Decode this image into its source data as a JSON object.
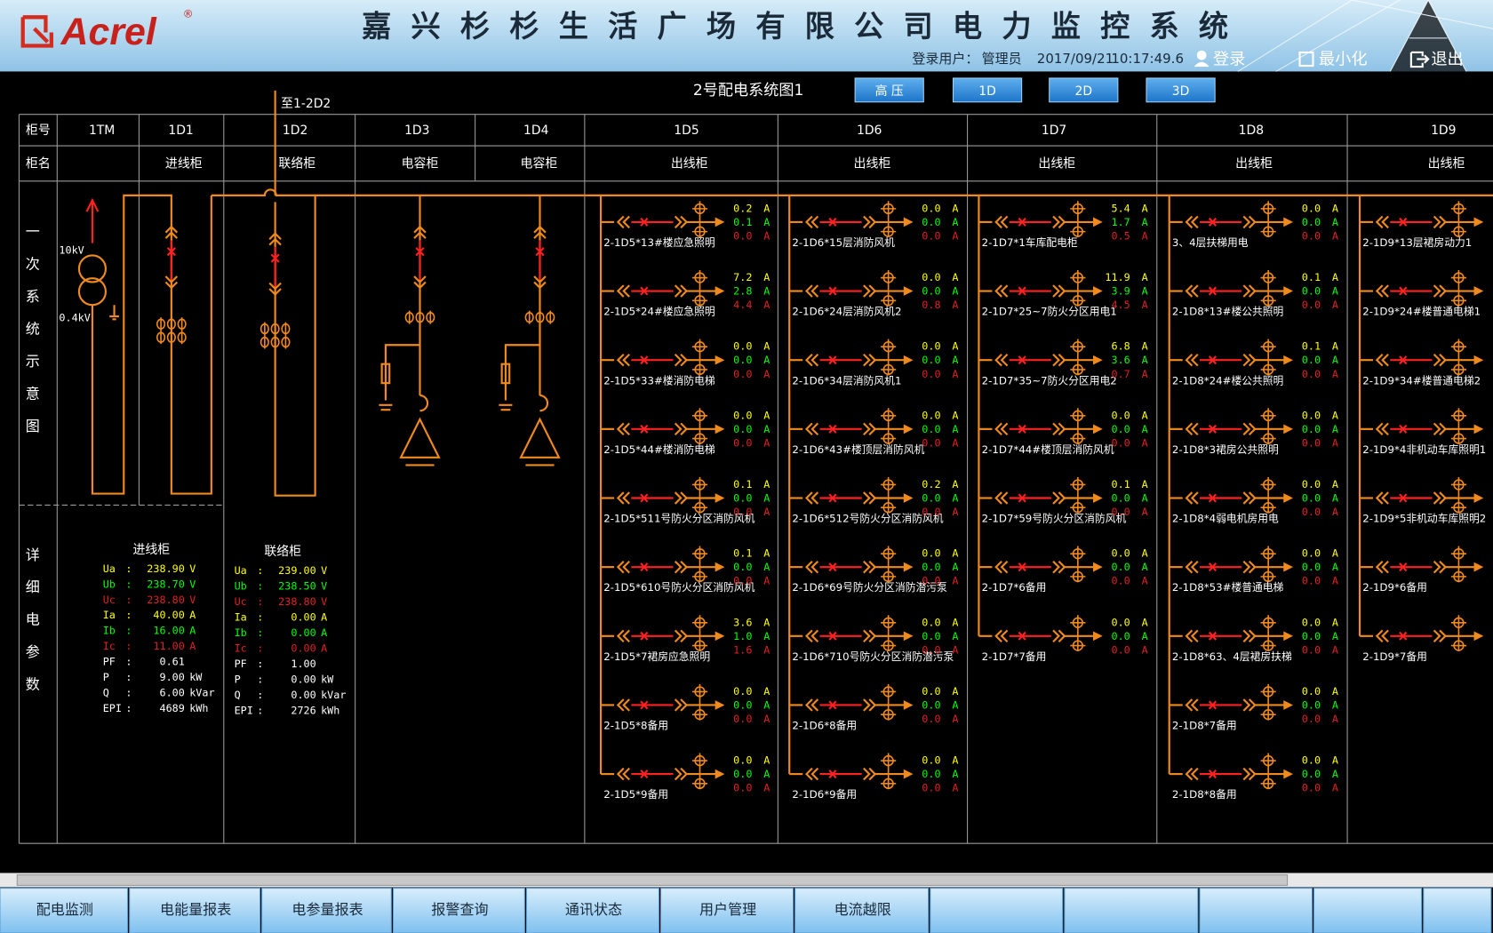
{
  "header": {
    "logo": "Acrel",
    "registered": "®",
    "title": "嘉兴杉杉生活广场有限公司电力监控系统",
    "user_label": "登录用户：",
    "user": "管理员",
    "date": "2017/09/21",
    "time": "10:17:49.6",
    "login": "登录",
    "minimize": "最小化",
    "exit": "退出"
  },
  "diagram": {
    "title": "2号配电系统图1",
    "buttons": [
      "高 压",
      "1D",
      "2D",
      "3D"
    ],
    "tie_note": "至1-2D2",
    "row_labels": [
      "柜号",
      "柜名"
    ],
    "side_labels": [
      "一次系统示意图",
      "详细电参数"
    ],
    "voltages": [
      "10kV",
      "0.4kV"
    ]
  },
  "cabinets": [
    {
      "id": "1TM"
    },
    {
      "id": "1D1",
      "name": "进线柜"
    },
    {
      "id": "1D2",
      "name": "联络柜"
    },
    {
      "id": "1D3",
      "name": "电容柜"
    },
    {
      "id": "1D4",
      "name": "电容柜"
    },
    {
      "id": "1D5",
      "name": "出线柜"
    },
    {
      "id": "1D6",
      "name": "出线柜"
    },
    {
      "id": "1D7",
      "name": "出线柜"
    },
    {
      "id": "1D8",
      "name": "出线柜"
    },
    {
      "id": "1D9",
      "name": "出线柜"
    }
  ],
  "unit": "A",
  "feeders": [
    {
      "cabinet": "1D5",
      "circuits": [
        {
          "label": "2-1D5*13#楼应急照明",
          "values": [
            "0.2",
            "0.1",
            "0.0"
          ]
        },
        {
          "label": "2-1D5*24#楼应急照明",
          "values": [
            "7.2",
            "2.8",
            "4.4"
          ]
        },
        {
          "label": "2-1D5*33#楼消防电梯",
          "values": [
            "0.0",
            "0.0",
            "0.0"
          ]
        },
        {
          "label": "2-1D5*44#楼消防电梯",
          "values": [
            "0.0",
            "0.0",
            "0.0"
          ]
        },
        {
          "label": "2-1D5*511号防火分区消防风机",
          "values": [
            "0.1",
            "0.0",
            "0.0"
          ]
        },
        {
          "label": "2-1D5*610号防火分区消防风机",
          "values": [
            "0.1",
            "0.0",
            "0.0"
          ]
        },
        {
          "label": "2-1D5*7裙房应急照明",
          "values": [
            "3.6",
            "1.0",
            "1.6"
          ]
        },
        {
          "label": "2-1D5*8备用",
          "values": [
            "0.0",
            "0.0",
            "0.0"
          ]
        },
        {
          "label": "2-1D5*9备用",
          "values": [
            "0.0",
            "0.0",
            "0.0"
          ]
        }
      ]
    },
    {
      "cabinet": "1D6",
      "circuits": [
        {
          "label": "2-1D6*15层消防风机",
          "values": [
            "0.0",
            "0.0",
            "0.0"
          ]
        },
        {
          "label": "2-1D6*24层消防风机2",
          "values": [
            "0.0",
            "0.0",
            "0.8"
          ]
        },
        {
          "label": "2-1D6*34层消防风机1",
          "values": [
            "0.0",
            "0.0",
            "0.0"
          ]
        },
        {
          "label": "2-1D6*43#楼顶层消防风机",
          "values": [
            "0.0",
            "0.0",
            "0.0"
          ]
        },
        {
          "label": "2-1D6*512号防火分区消防风机",
          "values": [
            "0.2",
            "0.0",
            "0.0"
          ]
        },
        {
          "label": "2-1D6*69号防火分区消防潜污泵",
          "values": [
            "0.0",
            "0.0",
            "0.0"
          ]
        },
        {
          "label": "2-1D6*710号防火分区消防潜污泵",
          "values": [
            "0.0",
            "0.0",
            "0.0"
          ]
        },
        {
          "label": "2-1D6*8备用",
          "values": [
            "0.0",
            "0.0",
            "0.0"
          ]
        },
        {
          "label": "2-1D6*9备用",
          "values": [
            "0.0",
            "0.0",
            "0.0"
          ]
        }
      ]
    },
    {
      "cabinet": "1D7",
      "circuits": [
        {
          "label": "2-1D7*1车库配电柜",
          "values": [
            "5.4",
            "1.7",
            "0.5"
          ]
        },
        {
          "label": "2-1D7*25~7防火分区用电1",
          "values": [
            "11.9",
            "3.9",
            "4.5"
          ]
        },
        {
          "label": "2-1D7*35~7防火分区用电2",
          "values": [
            "6.8",
            "3.6",
            "0.7"
          ]
        },
        {
          "label": "2-1D7*44#楼顶层消防风机",
          "values": [
            "0.0",
            "0.0",
            "0.0"
          ]
        },
        {
          "label": "2-1D7*59号防火分区消防风机",
          "values": [
            "0.1",
            "0.0",
            "0.0"
          ]
        },
        {
          "label": "2-1D7*6备用",
          "values": [
            "0.0",
            "0.0",
            "0.0"
          ]
        },
        {
          "label": "2-1D7*7备用",
          "values": [
            "0.0",
            "0.0",
            "0.0"
          ]
        }
      ]
    },
    {
      "cabinet": "1D8",
      "circuits": [
        {
          "label": "3、4层扶梯用电",
          "values": [
            "0.0",
            "0.0",
            "0.0"
          ]
        },
        {
          "label": "2-1D8*13#楼公共照明",
          "values": [
            "0.1",
            "0.0",
            "0.0"
          ]
        },
        {
          "label": "2-1D8*24#楼公共照明",
          "values": [
            "0.1",
            "0.0",
            "0.0"
          ]
        },
        {
          "label": "2-1D8*3裙房公共照明",
          "values": [
            "0.0",
            "0.0",
            "0.0"
          ]
        },
        {
          "label": "2-1D8*4弱电机房用电",
          "values": [
            "0.0",
            "0.0",
            "0.0"
          ]
        },
        {
          "label": "2-1D8*53#楼普通电梯",
          "values": [
            "0.0",
            "0.0",
            "0.0"
          ]
        },
        {
          "label": "2-1D8*63、4层裙房扶梯",
          "values": [
            "0.0",
            "0.0",
            "0.0"
          ]
        },
        {
          "label": "2-1D8*7备用",
          "values": [
            "0.0",
            "0.0",
            "0.0"
          ]
        },
        {
          "label": "2-1D8*8备用",
          "values": [
            "0.0",
            "0.0",
            "0.0"
          ]
        }
      ]
    },
    {
      "cabinet": "1D9",
      "circuits": [
        {
          "label": "2-1D9*13层裙房动力1"
        },
        {
          "label": "2-1D9*24#楼普通电梯1"
        },
        {
          "label": "2-1D9*34#楼普通电梯2"
        },
        {
          "label": "2-1D9*4非机动车库照明1"
        },
        {
          "label": "2-1D9*5非机动车库照明2"
        },
        {
          "label": "2-1D9*6备用"
        },
        {
          "label": "2-1D9*7备用"
        }
      ]
    }
  ],
  "details": [
    {
      "title": "进线柜",
      "separator": ":",
      "rows": [
        {
          "label": "Ua",
          "value": "238.90",
          "unit": "V"
        },
        {
          "label": "Ub",
          "value": "238.70",
          "unit": "V"
        },
        {
          "label": "Uc",
          "value": "238.80",
          "unit": "V"
        },
        {
          "label": "Ia",
          "value": "40.00",
          "unit": "A"
        },
        {
          "label": "Ib",
          "value": "16.00",
          "unit": "A"
        },
        {
          "label": "Ic",
          "value": "11.00",
          "unit": "A"
        },
        {
          "label": "PF",
          "value": "0.61"
        },
        {
          "label": "P",
          "value": "9.00",
          "unit": "kW"
        },
        {
          "label": "Q",
          "value": "6.00",
          "unit": "kVar"
        },
        {
          "label": "EPI",
          "value": "4689",
          "unit": "kWh"
        }
      ]
    },
    {
      "title": "联络柜",
      "separator": ":",
      "rows": [
        {
          "label": "Ua",
          "value": "239.00",
          "unit": "V"
        },
        {
          "label": "Ub",
          "value": "238.50",
          "unit": "V"
        },
        {
          "label": "Uc",
          "value": "238.80",
          "unit": "V"
        },
        {
          "label": "Ia",
          "value": "0.00",
          "unit": "A"
        },
        {
          "label": "Ib",
          "value": "0.00",
          "unit": "A"
        },
        {
          "label": "Ic",
          "value": "0.00",
          "unit": "A"
        },
        {
          "label": "PF",
          "value": "1.00"
        },
        {
          "label": "P",
          "value": "0.00",
          "unit": "kW"
        },
        {
          "label": "Q",
          "value": "0.00",
          "unit": "kVar"
        },
        {
          "label": "EPI",
          "value": "2726",
          "unit": "kWh"
        }
      ]
    }
  ],
  "nav": [
    "配电监测",
    "电能量报表",
    "电参量报表",
    "报警查询",
    "通讯状态",
    "用户管理",
    "电流越限"
  ]
}
